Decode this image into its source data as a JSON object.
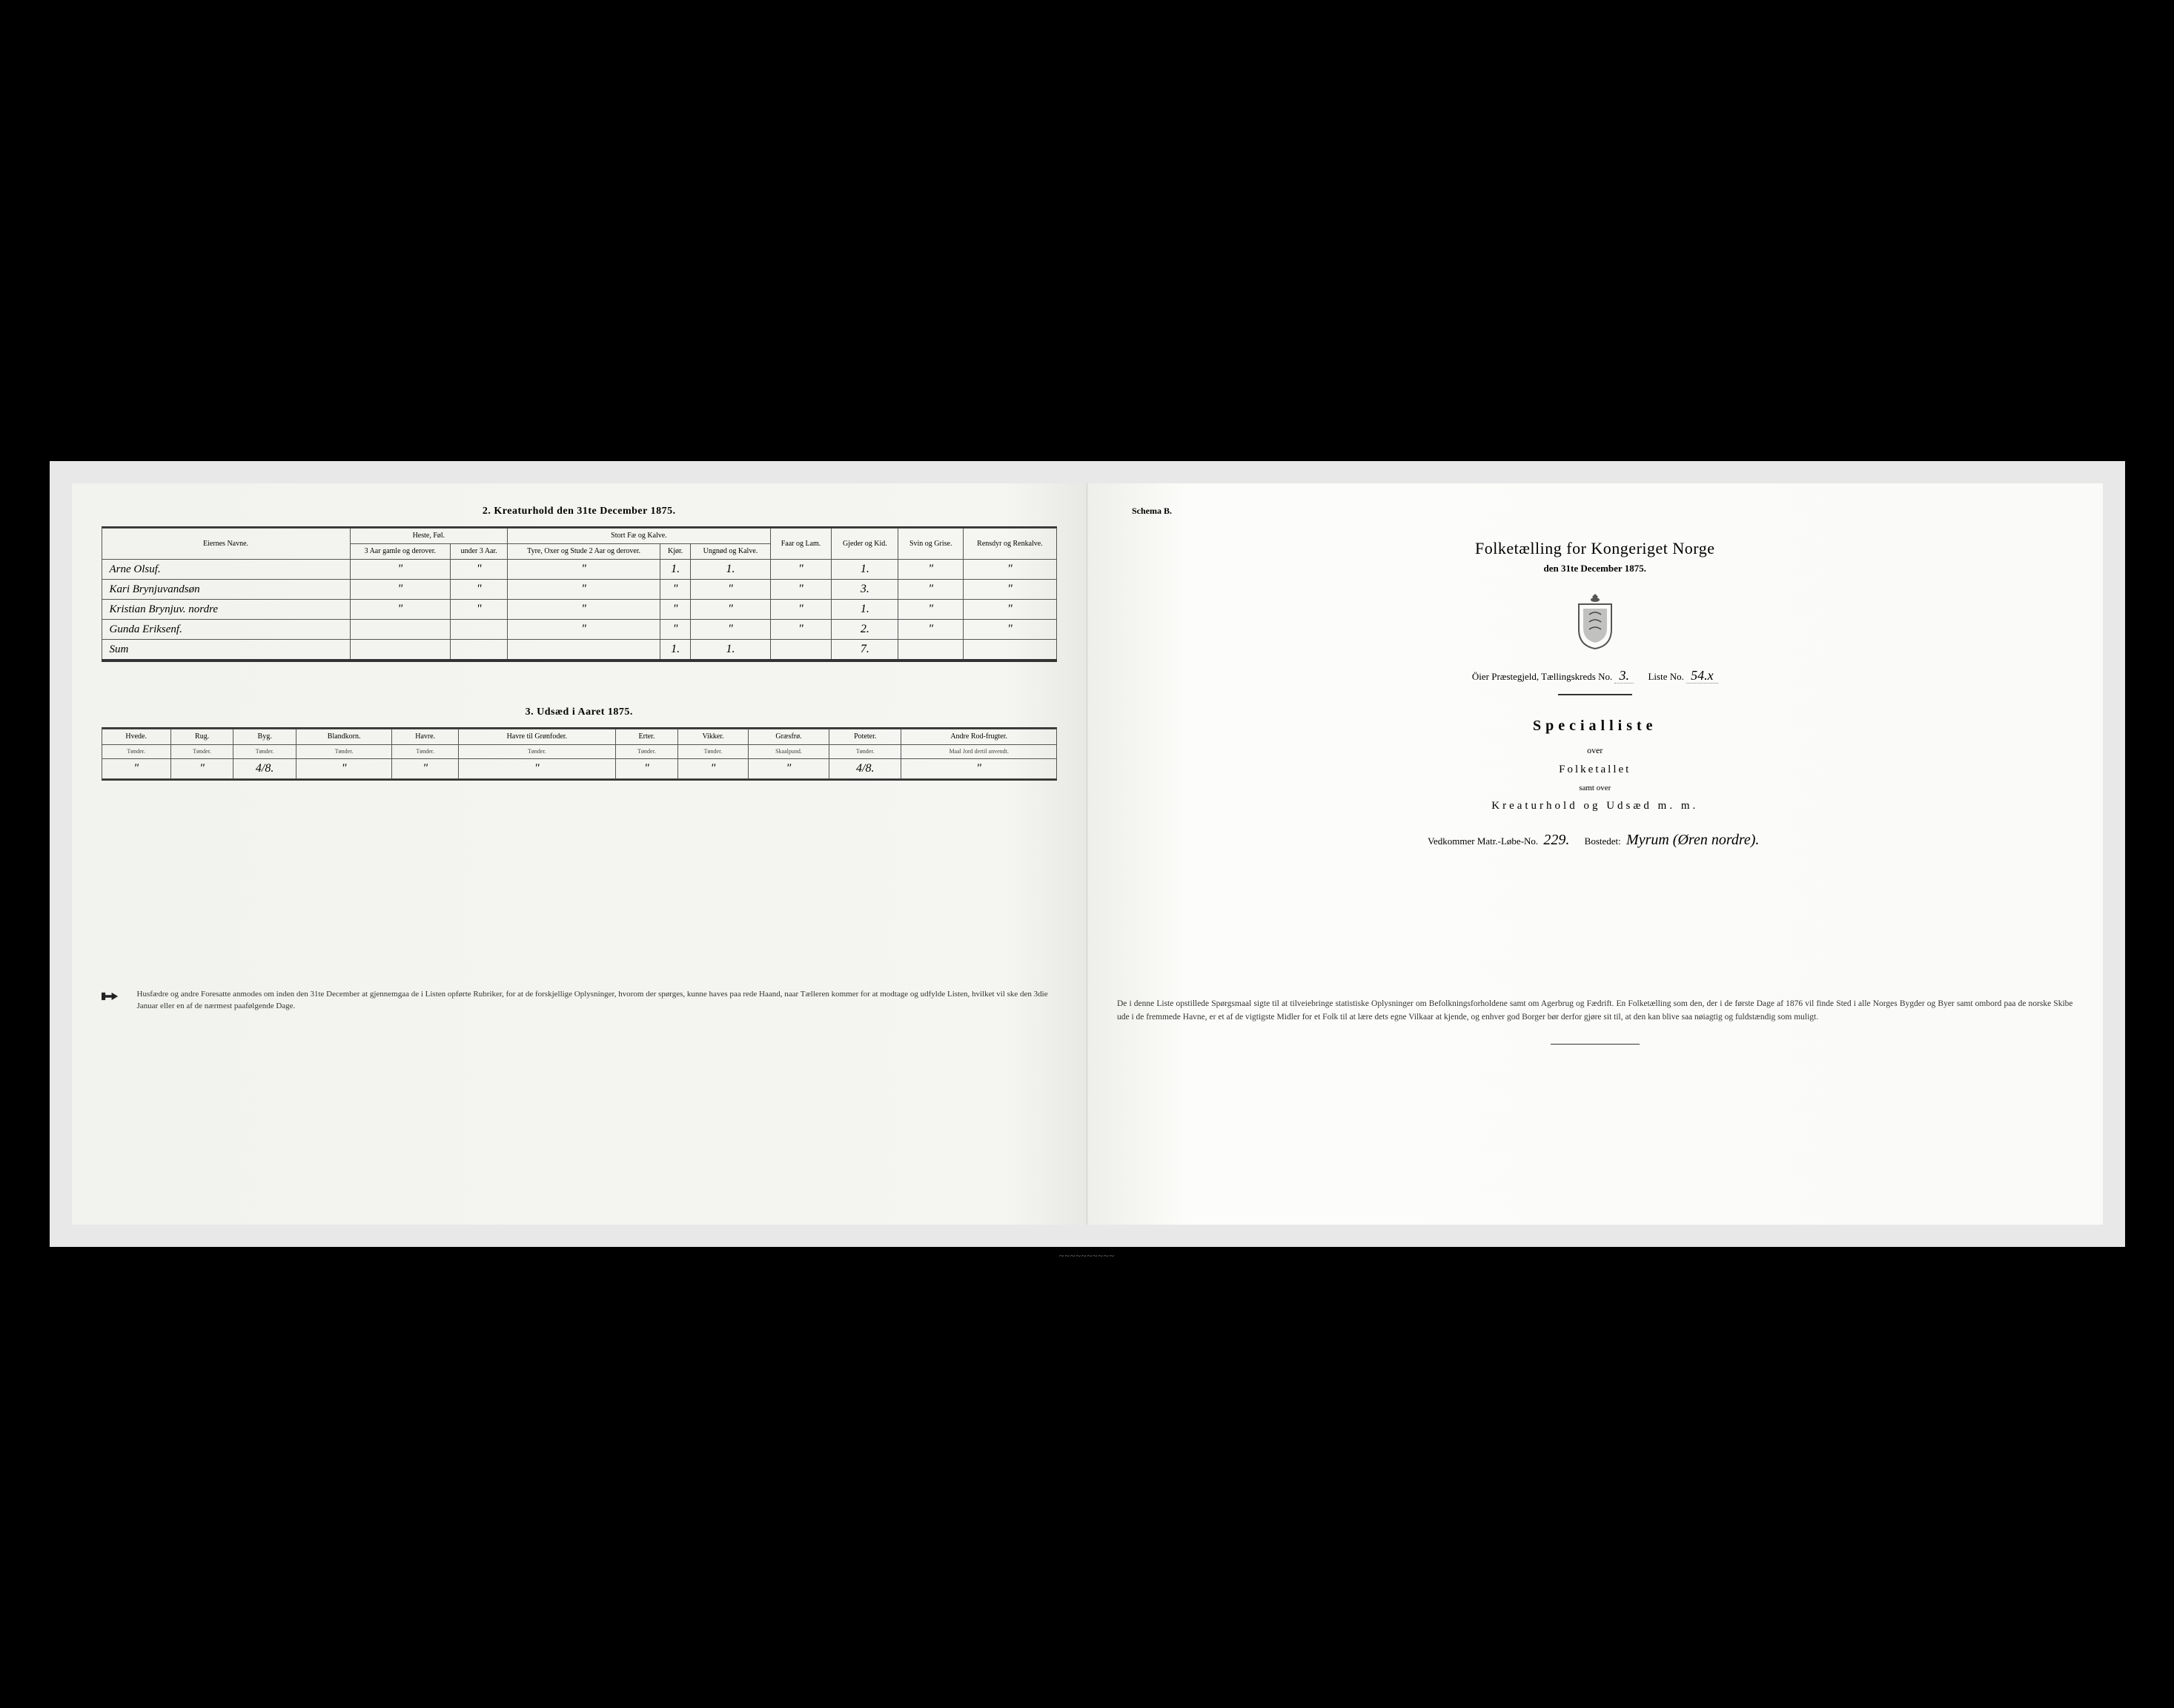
{
  "left": {
    "section2_title": "2. Kreaturhold den 31te December 1875.",
    "table2": {
      "col_owner": "Eiernes Navne.",
      "group_heste": "Heste, Føl.",
      "col_h1": "3 Aar gamle og derover.",
      "col_h2": "under 3 Aar.",
      "group_stort": "Stort Fæ og Kalve.",
      "col_s1": "Tyre, Oxer og Stude 2 Aar og derover.",
      "col_s2": "Kjør.",
      "col_s3": "Ungnød og Kalve.",
      "col_faar": "Faar og Lam.",
      "col_gjed": "Gjeder og Kid.",
      "col_svin": "Svin og Grise.",
      "col_ren": "Rensdyr og Renkalve.",
      "rows": [
        {
          "name": "Arne Olsuf.",
          "h1": "\"",
          "h2": "\"",
          "s1": "\"",
          "s2": "1.",
          "s3": "1.",
          "faar": "\"",
          "gjed": "1.",
          "svin": "\"",
          "ren": "\""
        },
        {
          "name": "Kari Brynjuvandsøn",
          "h1": "\"",
          "h2": "\"",
          "s1": "\"",
          "s2": "\"",
          "s3": "\"",
          "faar": "\"",
          "gjed": "3.",
          "svin": "\"",
          "ren": "\""
        },
        {
          "name": "Kristian Brynjuv. nordre",
          "h1": "\"",
          "h2": "\"",
          "s1": "\"",
          "s2": "\"",
          "s3": "\"",
          "faar": "\"",
          "gjed": "1.",
          "svin": "\"",
          "ren": "\""
        },
        {
          "name": "Gunda Eriksenf.",
          "h1": "",
          "h2": "",
          "s1": "\"",
          "s2": "\"",
          "s3": "\"",
          "faar": "\"",
          "gjed": "2.",
          "svin": "\"",
          "ren": "\""
        },
        {
          "name": "Sum",
          "h1": "",
          "h2": "",
          "s1": "",
          "s2": "1.",
          "s3": "1.",
          "faar": "",
          "gjed": "7.",
          "svin": "",
          "ren": ""
        }
      ]
    },
    "section3_title": "3. Udsæd i Aaret 1875.",
    "table3": {
      "cols": [
        "Hvede.",
        "Rug.",
        "Byg.",
        "Blandkorn.",
        "Havre.",
        "Havre til Grønfoder.",
        "Erter.",
        "Vikker.",
        "Græsfrø.",
        "Poteter.",
        "Andre Rod-frugter."
      ],
      "subs": [
        "Tønder.",
        "Tønder.",
        "Tønder.",
        "Tønder.",
        "Tønder.",
        "Tønder.",
        "Tønder.",
        "Tønder.",
        "Skaalpund.",
        "Tønder.",
        "Maal Jord dertil anvendt."
      ],
      "row": [
        "\"",
        "\"",
        "4/8.",
        "\"",
        "\"",
        "\"",
        "\"",
        "\"",
        "\"",
        "4/8.",
        "\""
      ]
    },
    "footnote": "Husfædre og andre Foresatte anmodes om inden den 31te December at gjennemgaa de i Listen opførte Rubriker, for at de forskjellige Oplysninger, hvorom der spørges, kunne haves paa rede Haand, naar Tælleren kommer for at modtage og udfylde Listen, hvilket vil ske den 3die Januar eller en af de nærmest paafølgende Dage."
  },
  "right": {
    "schema": "Schema B.",
    "title": "Folketælling for Kongeriget Norge",
    "subtitle": "den 31te December 1875.",
    "district_prefix": "Öier Præstegjeld, Tællingskreds No.",
    "district_no": "3.",
    "liste_label": "Liste No.",
    "liste_no": "54.x",
    "special": "Specialliste",
    "over": "over",
    "folketallet": "Folketallet",
    "samt": "samt over",
    "kreatur": "Kreaturhold og Udsæd m. m.",
    "matr_label": "Vedkommer Matr.-Løbe-No.",
    "matr_no": "229.",
    "bosted_label": "Bostedet:",
    "bosted": "Myrum (Øren nordre).",
    "para": "De i denne Liste opstillede Spørgsmaal sigte til at tilveiebringe statistiske Oplysninger om Befolkningsforholdene samt om Agerbrug og Fædrift. En Folketælling som den, der i de første Dage af 1876 vil finde Sted i alle Norges Bygder og Byer samt ombord paa de norske Skibe ude i de fremmede Havne, er et af de vigtigste Midler for et Folk til at lære dets egne Vilkaar at kjende, og enhver god Borger bør derfor gjøre sit til, at den kan blive saa nøiagtig og fuldstændig som muligt."
  }
}
